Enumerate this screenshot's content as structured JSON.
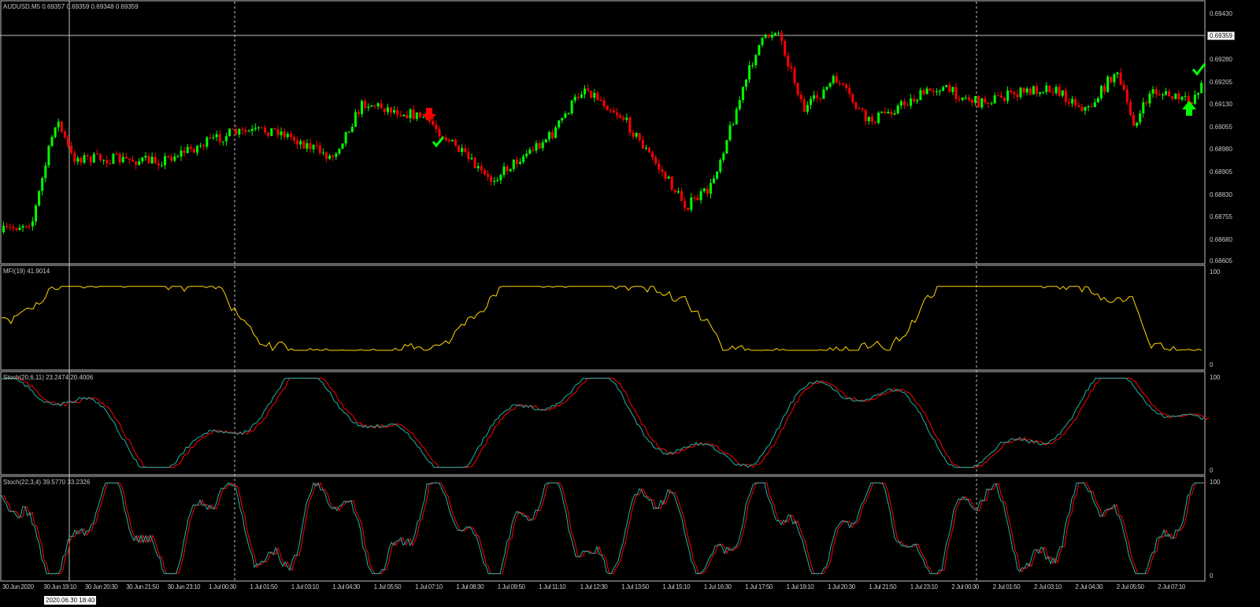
{
  "symbol_header": "AUDUSD,M5  0.69357 0.69359 0.69348 0.69359",
  "price_axis": [
    "0.69430",
    "0.69359",
    "0.69280",
    "0.69205",
    "0.69130",
    "0.69055",
    "0.68980",
    "0.68905",
    "0.68830",
    "0.68755",
    "0.68680",
    "0.68605"
  ],
  "crosshair": {
    "price": "0.69359",
    "time": "2020.06.30 18:40"
  },
  "indicators": [
    {
      "label": "MFI(19) 41.9014",
      "scale_max": "100",
      "scale_min": "0",
      "color": "#ffd700"
    },
    {
      "label": "Stoch(20,6,11) 23.2474 20.4006",
      "scale_max": "100",
      "scale_min": "0",
      "main_color": "#20b2aa",
      "signal_color": "#ff0000"
    },
    {
      "label": "Stoch(22,3,4) 39.5770 33.2326",
      "scale_max": "100",
      "scale_min": "0",
      "main_color": "#20b2aa",
      "signal_color": "#ff0000"
    }
  ],
  "time_axis": [
    "30 Jun 2020",
    "30 Jun 19:10",
    "30 Jun 20:30",
    "30 Jun 21:50",
    "30 Jun 23:10",
    "1 Jul 00:30",
    "1 Jul 01:50",
    "1 Jul 03:10",
    "1 Jul 04:30",
    "1 Jul 05:50",
    "1 Jul 07:10",
    "1 Jul 08:30",
    "1 Jul 09:50",
    "1 Jul 11:10",
    "1 Jul 12:30",
    "1 Jul 13:50",
    "1 Jul 15:10",
    "1 Jul 16:30",
    "1 Jul 17:50",
    "1 Jul 19:10",
    "1 Jul 20:30",
    "1 Jul 21:50",
    "1 Jul 23:10",
    "2 Jul 00:30",
    "2 Jul 01:50",
    "2 Jul 03:10",
    "2 Jul 04:30",
    "2 Jul 05:50",
    "2 Jul 07:10"
  ],
  "colors": {
    "bull": "#00ff00",
    "bear": "#ff0000",
    "background": "#000000",
    "grid": "#c0c0c0"
  },
  "signals": [
    {
      "type": "sell-arrow-icon",
      "color": "#ff0000"
    },
    {
      "type": "check-icon",
      "color": "#00ff00"
    },
    {
      "type": "buy-arrow-icon",
      "color": "#00ff00"
    },
    {
      "type": "check-icon",
      "color": "#00ff00"
    }
  ]
}
